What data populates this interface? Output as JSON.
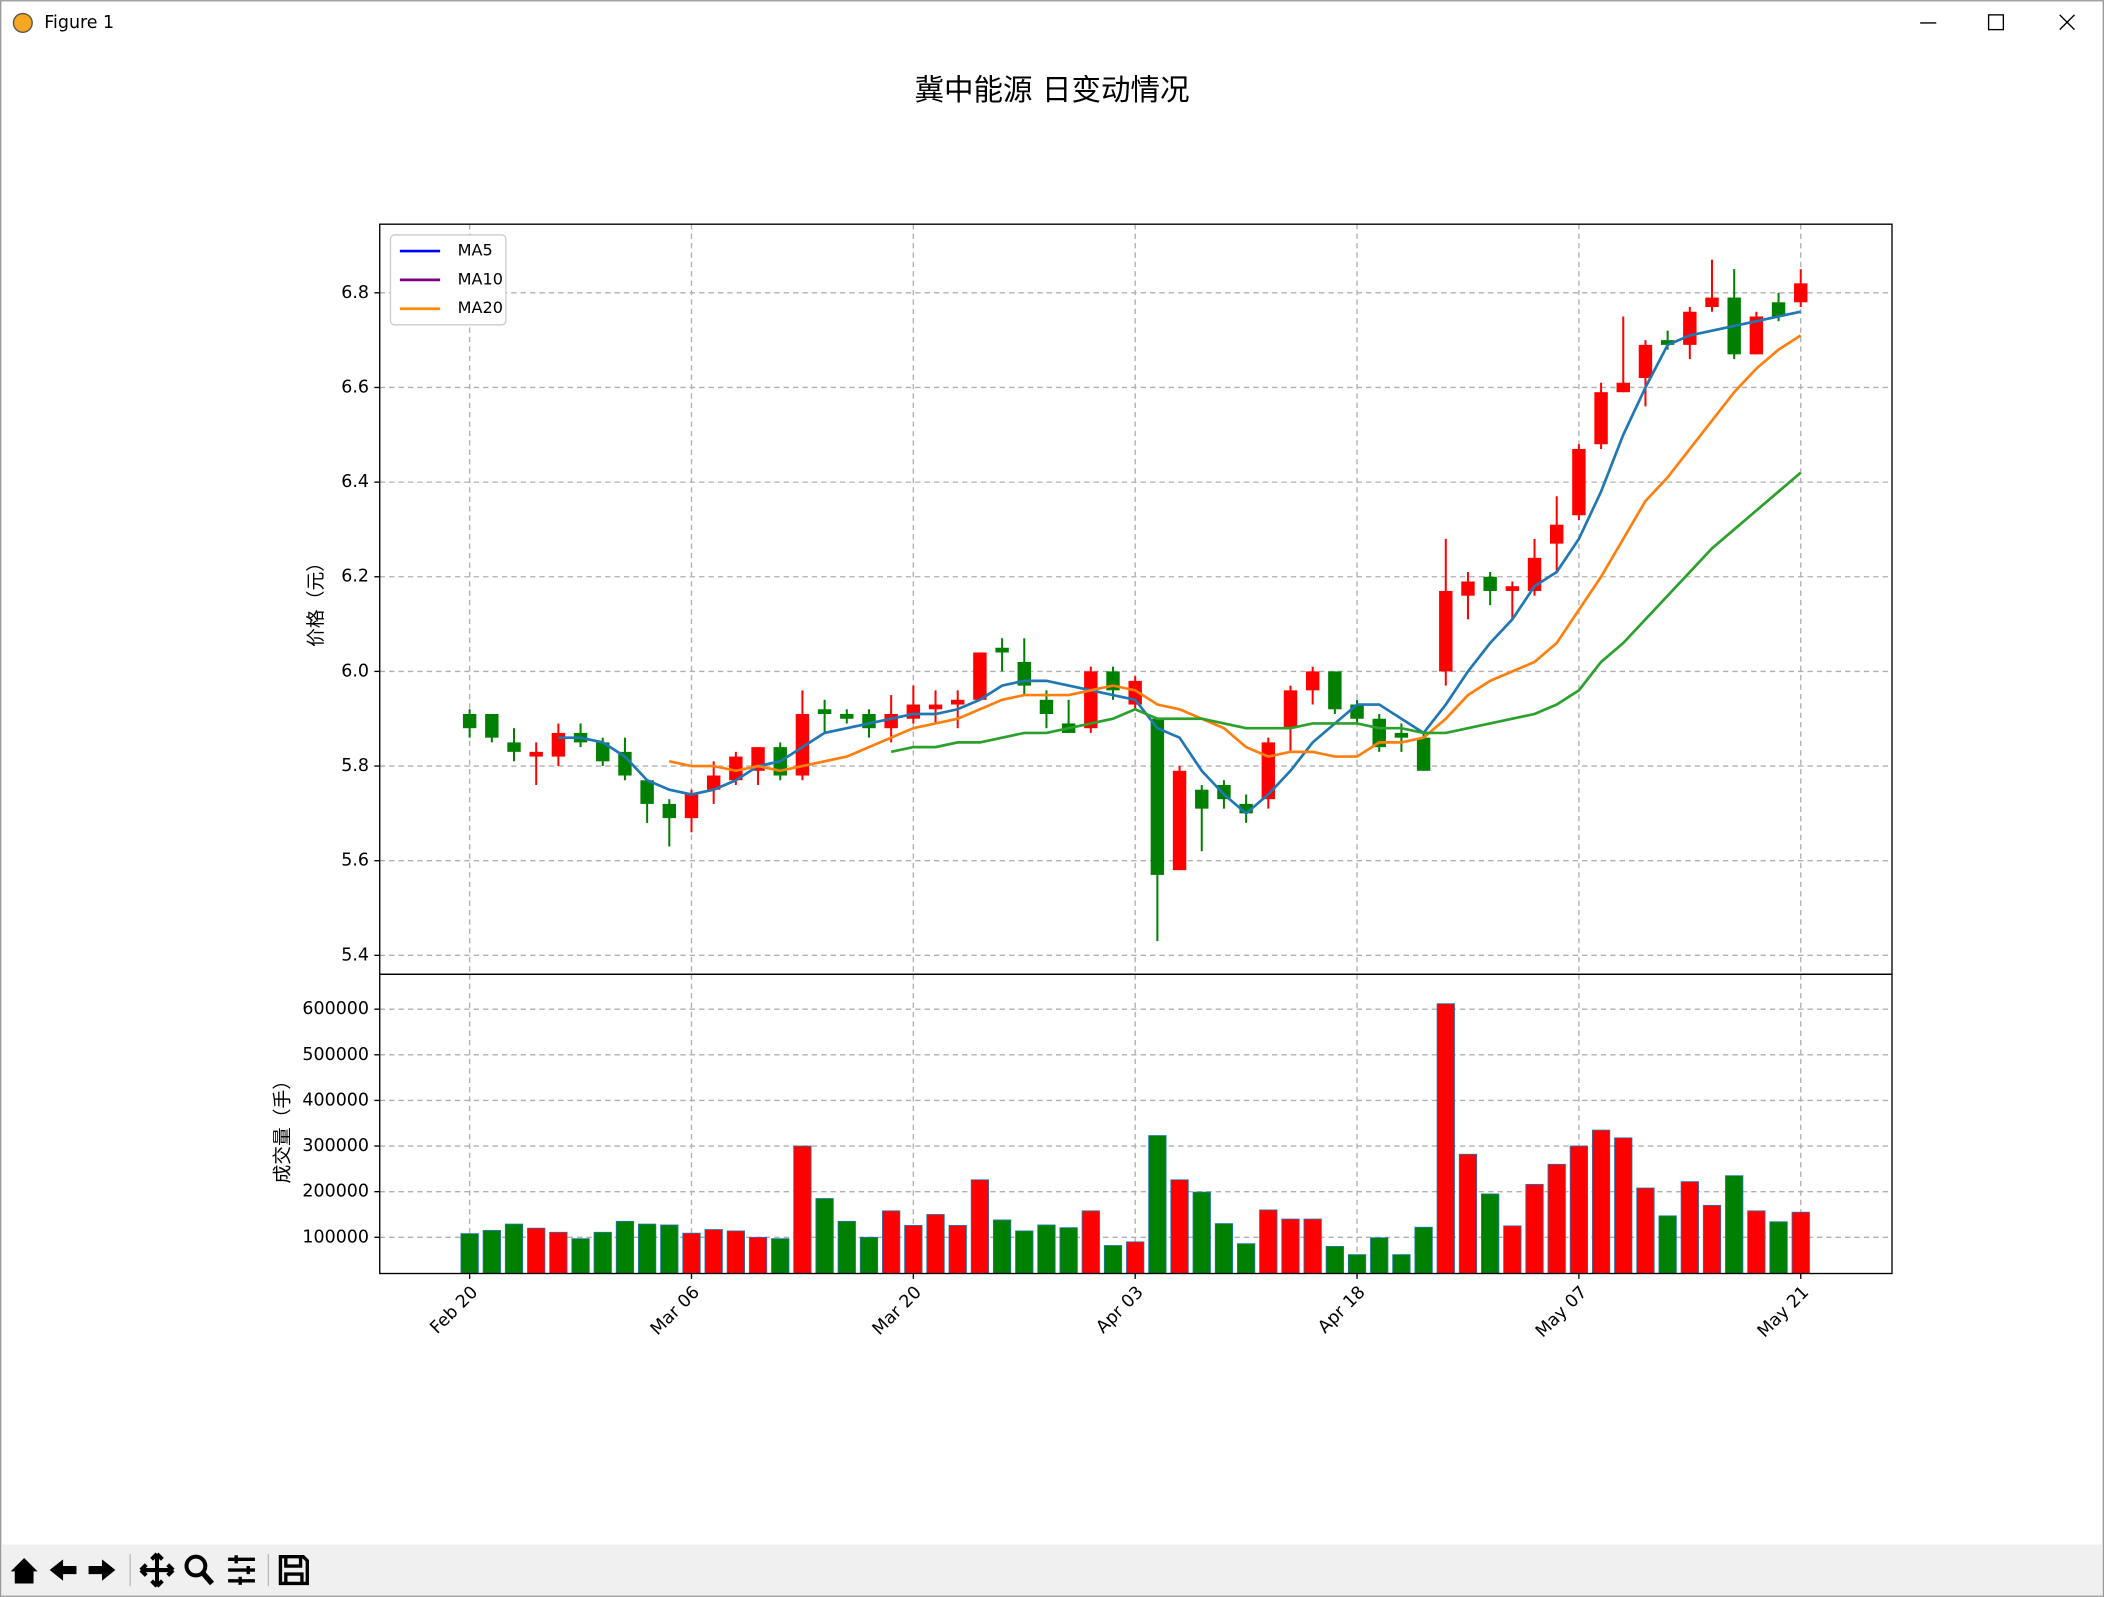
{
  "window": {
    "title": "Figure 1"
  },
  "chart_data": [
    {
      "type": "candlestick",
      "title": "冀中能源 日变动情况",
      "ylabel": "价格（元）",
      "ylim": [
        5.36,
        6.945
      ],
      "yticks": [
        5.4,
        5.6,
        5.8,
        {
          "value": 6,
          "label": "6.0"
        },
        6.2,
        6.4,
        6.6,
        6.8
      ],
      "grid": true,
      "legend": "upper left",
      "up_color": "#ff0000",
      "down_color": "#008000",
      "open": [
        5.91,
        5.91,
        5.85,
        5.82,
        5.82,
        5.87,
        5.85,
        5.83,
        5.77,
        5.72,
        5.69,
        5.75,
        5.77,
        5.79,
        5.84,
        5.78,
        5.92,
        5.91,
        5.91,
        5.88,
        5.9,
        5.92,
        5.93,
        5.94,
        6.05,
        6.02,
        5.94,
        5.89,
        5.88,
        6.0,
        5.93,
        5.9,
        5.58,
        5.75,
        5.76,
        5.72,
        5.73,
        5.88,
        5.96,
        6.0,
        5.93,
        5.9,
        5.87,
        5.86,
        6.0,
        6.16,
        6.2,
        6.17,
        6.17,
        6.27,
        6.33,
        6.48,
        6.59,
        6.62,
        6.7,
        6.69,
        6.77,
        6.79,
        6.67,
        6.78,
        6.78
      ],
      "high": [
        5.92,
        5.91,
        5.88,
        5.85,
        5.89,
        5.89,
        5.86,
        5.86,
        5.77,
        5.73,
        5.75,
        5.81,
        5.83,
        5.84,
        5.85,
        5.96,
        5.94,
        5.92,
        5.92,
        5.95,
        5.97,
        5.96,
        5.96,
        6.04,
        6.07,
        6.07,
        5.96,
        5.94,
        6.01,
        6.01,
        5.99,
        5.9,
        5.8,
        5.76,
        5.77,
        5.74,
        5.86,
        5.97,
        6.01,
        6.0,
        5.94,
        5.91,
        5.89,
        5.87,
        6.28,
        6.21,
        6.21,
        6.19,
        6.28,
        6.37,
        6.48,
        6.61,
        6.75,
        6.7,
        6.72,
        6.77,
        6.87,
        6.85,
        6.76,
        6.8,
        6.85
      ],
      "low": [
        5.86,
        5.85,
        5.81,
        5.76,
        5.8,
        5.84,
        5.8,
        5.77,
        5.68,
        5.63,
        5.66,
        5.72,
        5.76,
        5.76,
        5.77,
        5.77,
        5.87,
        5.89,
        5.86,
        5.85,
        5.89,
        5.89,
        5.88,
        5.94,
        6.0,
        5.95,
        5.88,
        5.87,
        5.87,
        5.94,
        5.92,
        5.43,
        5.58,
        5.62,
        5.71,
        5.68,
        5.71,
        5.83,
        5.93,
        5.91,
        5.89,
        5.83,
        5.83,
        5.79,
        5.97,
        6.11,
        6.14,
        6.11,
        6.16,
        6.21,
        6.32,
        6.47,
        6.59,
        6.56,
        6.68,
        6.66,
        6.76,
        6.66,
        6.67,
        6.74,
        6.77
      ],
      "close": [
        5.88,
        5.86,
        5.83,
        5.83,
        5.87,
        5.85,
        5.81,
        5.78,
        5.72,
        5.69,
        5.74,
        5.78,
        5.82,
        5.84,
        5.78,
        5.91,
        5.91,
        5.9,
        5.88,
        5.91,
        5.93,
        5.93,
        5.94,
        6.04,
        6.04,
        5.97,
        5.91,
        5.87,
        6.0,
        5.96,
        5.98,
        5.57,
        5.79,
        5.71,
        5.73,
        5.7,
        5.85,
        5.96,
        6.0,
        5.92,
        5.9,
        5.84,
        5.86,
        5.79,
        6.17,
        6.19,
        6.17,
        6.18,
        6.24,
        6.31,
        6.47,
        6.59,
        6.61,
        6.69,
        6.69,
        6.76,
        6.79,
        6.67,
        6.75,
        6.75,
        6.82
      ],
      "series": [
        {
          "name": "MA5",
          "color": "#1f77b4",
          "legend_color": "#0000ff",
          "values": [
            null,
            null,
            null,
            null,
            5.86,
            5.86,
            5.85,
            5.82,
            5.77,
            5.75,
            5.74,
            5.75,
            5.77,
            5.8,
            5.81,
            5.84,
            5.87,
            5.88,
            5.89,
            5.9,
            5.91,
            5.91,
            5.92,
            5.94,
            5.97,
            5.98,
            5.98,
            5.97,
            5.96,
            5.95,
            5.94,
            5.88,
            5.86,
            5.79,
            5.74,
            5.7,
            5.74,
            5.79,
            5.85,
            5.89,
            5.93,
            5.93,
            5.9,
            5.87,
            5.93,
            6.0,
            6.06,
            6.11,
            6.18,
            6.21,
            6.28,
            6.38,
            6.5,
            6.6,
            6.69,
            6.71,
            6.72,
            6.73,
            6.74,
            6.75,
            6.76
          ]
        },
        {
          "name": "MA10",
          "color": "#ff7f0e",
          "legend_color": "#800080",
          "values": [
            null,
            null,
            null,
            null,
            null,
            null,
            null,
            null,
            null,
            5.81,
            5.8,
            5.8,
            5.79,
            5.8,
            5.79,
            5.8,
            5.81,
            5.82,
            5.84,
            5.86,
            5.88,
            5.89,
            5.9,
            5.92,
            5.94,
            5.95,
            5.95,
            5.95,
            5.96,
            5.97,
            5.96,
            5.93,
            5.92,
            5.9,
            5.88,
            5.84,
            5.82,
            5.83,
            5.83,
            5.82,
            5.82,
            5.85,
            5.85,
            5.86,
            5.9,
            5.95,
            5.98,
            6.0,
            6.02,
            6.06,
            6.13,
            6.2,
            6.28,
            6.36,
            6.41,
            6.47,
            6.53,
            6.59,
            6.64,
            6.68,
            6.71
          ]
        },
        {
          "name": "MA20",
          "color": "#2ca02c",
          "legend_color": "#ff8c00",
          "values": [
            null,
            null,
            null,
            null,
            null,
            null,
            null,
            null,
            null,
            null,
            null,
            null,
            null,
            null,
            null,
            null,
            null,
            null,
            null,
            5.83,
            5.84,
            5.84,
            5.85,
            5.85,
            5.86,
            5.87,
            5.87,
            5.88,
            5.89,
            5.9,
            5.92,
            5.9,
            5.9,
            5.9,
            5.89,
            5.88,
            5.88,
            5.88,
            5.89,
            5.89,
            5.89,
            5.88,
            5.88,
            5.87,
            5.87,
            5.88,
            5.89,
            5.9,
            5.91,
            5.93,
            5.96,
            6.02,
            6.06,
            6.11,
            6.16,
            6.21,
            6.26,
            6.3,
            6.34,
            6.38,
            6.42
          ]
        }
      ]
    },
    {
      "type": "bar",
      "ylabel": "成交量（手）",
      "ylim": [
        20600,
        676500
      ],
      "yticks": [
        100000,
        200000,
        300000,
        400000,
        500000,
        600000
      ],
      "grid": true,
      "categories": [
        "Feb 20",
        null,
        null,
        null,
        null,
        null,
        null,
        null,
        null,
        null,
        "Mar 06",
        null,
        null,
        null,
        null,
        null,
        null,
        null,
        null,
        null,
        "Mar 20",
        null,
        null,
        null,
        null,
        null,
        null,
        null,
        null,
        null,
        "Apr 03",
        null,
        null,
        null,
        null,
        null,
        null,
        null,
        null,
        null,
        "Apr 18",
        null,
        null,
        null,
        null,
        null,
        null,
        null,
        null,
        null,
        "May 07",
        null,
        null,
        null,
        null,
        null,
        null,
        null,
        null,
        null,
        "May 21"
      ],
      "values": [
        108000,
        115000,
        129000,
        120000,
        111000,
        97000,
        111000,
        135000,
        129000,
        127000,
        109000,
        117000,
        114000,
        100000,
        97000,
        300000,
        185000,
        135000,
        100000,
        158000,
        126000,
        150000,
        126000,
        226000,
        138000,
        114000,
        127000,
        121000,
        158000,
        82000,
        90000,
        323000,
        226000,
        199000,
        130000,
        86000,
        160000,
        140000,
        140000,
        80000,
        62000,
        99000,
        62000,
        122000,
        612000,
        282000,
        195000,
        125000,
        216000,
        260000,
        300000,
        335000,
        318000,
        208000,
        147000,
        222000,
        170000,
        235000,
        158000,
        134000,
        155000
      ]
    }
  ]
}
